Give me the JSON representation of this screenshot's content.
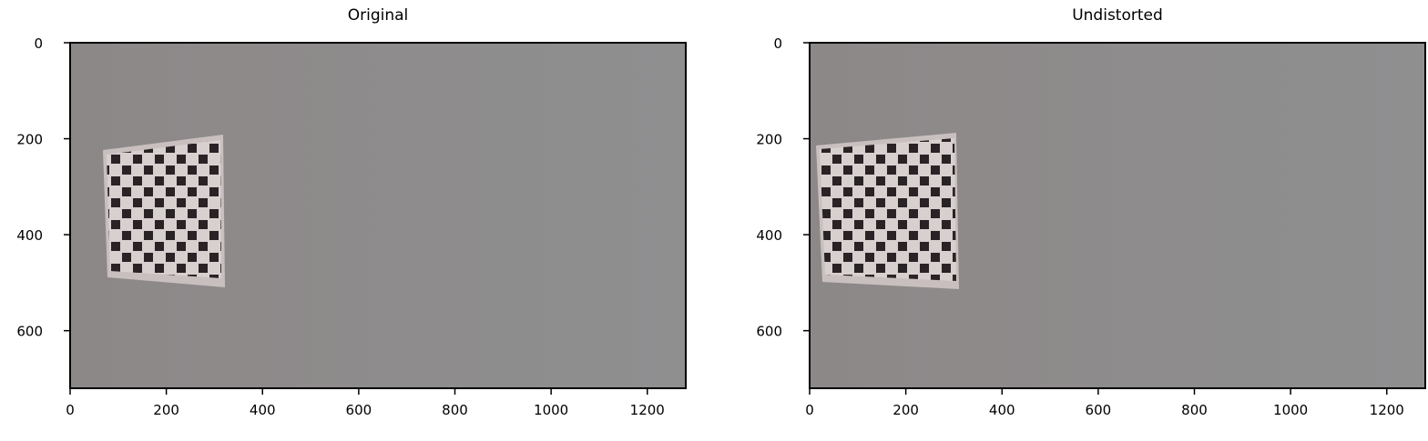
{
  "chart_data": [
    {
      "type": "image",
      "title": "Original",
      "xlim": [
        0,
        1280
      ],
      "ylim": [
        720,
        0
      ],
      "xticks": [
        0,
        200,
        400,
        600,
        800,
        1000,
        1200
      ],
      "yticks": [
        0,
        200,
        400,
        600
      ]
    },
    {
      "type": "image",
      "title": "Undistorted",
      "xlim": [
        0,
        1280
      ],
      "ylim": [
        720,
        0
      ],
      "xticks": [
        0,
        200,
        400,
        600,
        800,
        1000,
        1200
      ],
      "yticks": [
        0,
        200,
        400,
        600
      ]
    }
  ]
}
